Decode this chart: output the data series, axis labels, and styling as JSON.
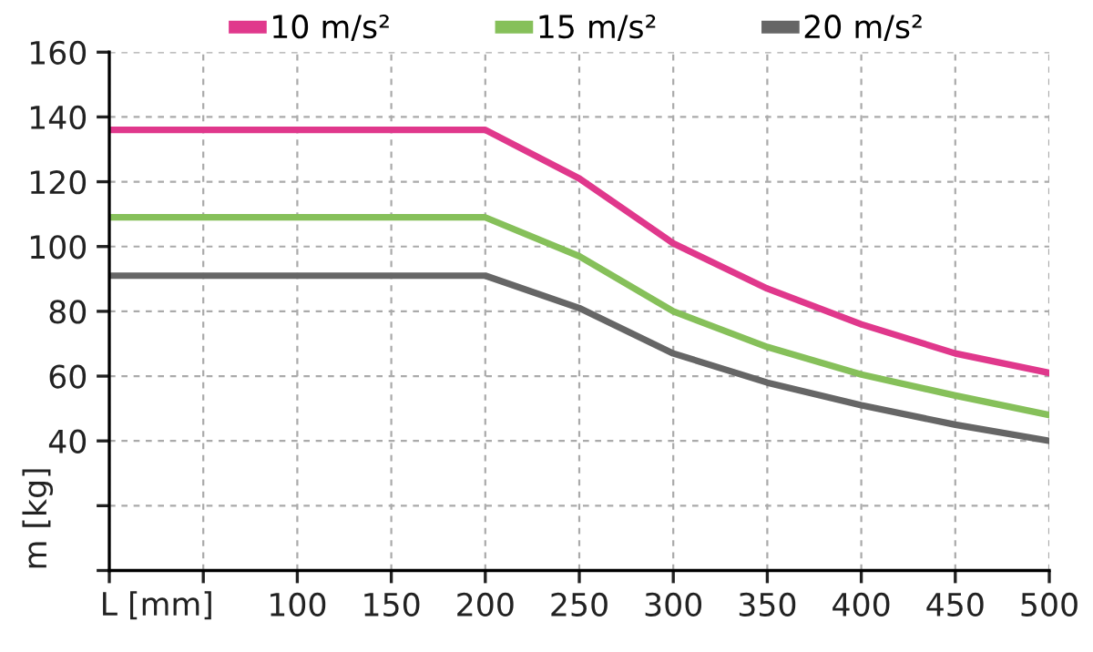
{
  "chart_data": {
    "type": "line",
    "xlabel": "L [mm]",
    "ylabel": "m [kg]",
    "x": [
      0,
      200,
      250,
      300,
      350,
      400,
      450,
      500
    ],
    "series": [
      {
        "name": "10 m/s²",
        "color": "#e0388c",
        "values": [
          136,
          136,
          121,
          101,
          87,
          76,
          67,
          61
        ]
      },
      {
        "name": "15 m/s²",
        "color": "#86c05a",
        "values": [
          109,
          109,
          97,
          80,
          69,
          60.5,
          54,
          48
        ]
      },
      {
        "name": "20 m/s²",
        "color": "#666666",
        "values": [
          91,
          91,
          81,
          67,
          58,
          51,
          45,
          40
        ]
      }
    ],
    "xlim": [
      0,
      500
    ],
    "xticks": [
      {
        "value": 0,
        "label": null
      },
      {
        "value": 50,
        "label": null
      },
      100,
      150,
      200,
      250,
      300,
      350,
      400,
      450,
      500
    ],
    "ylim": [
      0,
      160
    ],
    "yticks": [
      {
        "value": 0,
        "label": null
      },
      {
        "value": 20,
        "label": null
      },
      40,
      60,
      80,
      100,
      120,
      140,
      160
    ],
    "grid": true,
    "legend": "top",
    "marker": "none",
    "line_style": "solid"
  }
}
